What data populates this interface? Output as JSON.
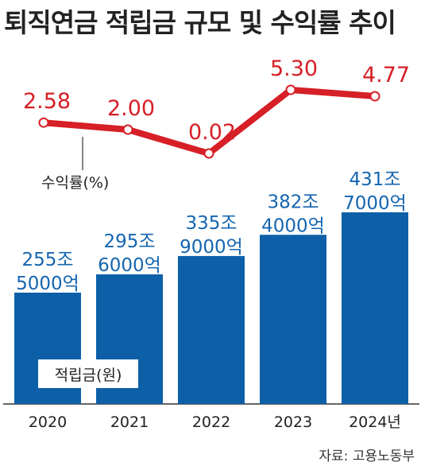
{
  "title": "퇴직연금 적립금 규모 및 수익률 추이",
  "source": "자료: 고용노동부",
  "colors": {
    "bar": "#0d5fa8",
    "line": "#d61f26",
    "label_blue": "#1565b0",
    "text": "#222222"
  },
  "chart_data": [
    {
      "type": "bar",
      "categories": [
        "2020",
        "2021",
        "2022",
        "2023",
        "2024년"
      ],
      "series": [
        {
          "name": "적립금(원)",
          "values": [
            2555000,
            2956000,
            3359000,
            3824000,
            4317000
          ],
          "labels": [
            [
              "255조",
              "5000억"
            ],
            [
              "295조",
              "6000억"
            ],
            [
              "335조",
              "9000억"
            ],
            [
              "382조",
              "4000억"
            ],
            [
              "431조",
              "7000억"
            ]
          ]
        }
      ],
      "unit": "억원"
    },
    {
      "type": "line",
      "categories": [
        "2020",
        "2021",
        "2022",
        "2023",
        "2024년"
      ],
      "series": [
        {
          "name": "수익률(%)",
          "values": [
            2.58,
            2.0,
            0.02,
            5.3,
            4.77
          ],
          "labels": [
            "2.58",
            "2.00",
            "0.02",
            "5.30",
            "4.77"
          ]
        }
      ],
      "unit": "%"
    }
  ]
}
